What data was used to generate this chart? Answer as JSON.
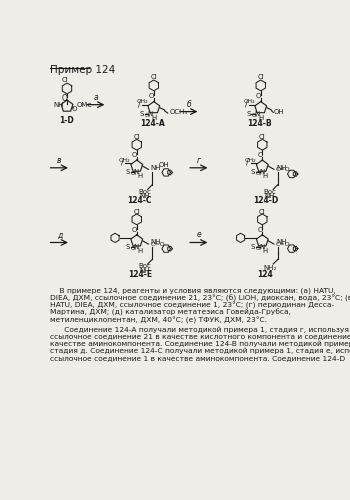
{
  "title": "Пример 124",
  "background_color": "#f0ede8",
  "text_color": "#1a1a1a",
  "paragraph1_indent": "    В примере 124, реагенты и условия являются следующими: (а) HATU,",
  "paragraph1_lines": [
    "    В примере 124, реагенты и условия являются следующими: (а) HATU,",
    "DIEA, ДХМ, ссылочное соединение 21, 23°C; (б) LiOH, диоксан, вода, 23°C; (в)",
    "HATU, DIEA, ДХМ, ссылочное соединение 1, 23°C; (г) периодинан Десса-",
    "Мартина, ДХМ; (д) катализатор метатезиса Говейда-Грубса,",
    "метиленциклопентан, ДХМ, 40°C; (е) ТФУК, ДХМ, 23°C."
  ],
  "paragraph2_lines": [
    "      Соединение 124-A получали методикой примера 1, стадия г, используя",
    "ссылочное соединение 21 в качестве кислотного компонента и соединение 1-А в",
    "качестве аминокомпонента. Соединение 124-B получали методикой примера 1,",
    "стадия д. Соединение 124-C получали методикой примера 1, стадия е, используя",
    "ссылочное соединение 1 в качестве аминокомпонента. Соединение 124-D"
  ],
  "arrow_color": "#1a1a1a",
  "label_a": "а",
  "label_b": "б",
  "label_v": "в",
  "label_g": "г",
  "label_d": "д",
  "label_e": "е"
}
